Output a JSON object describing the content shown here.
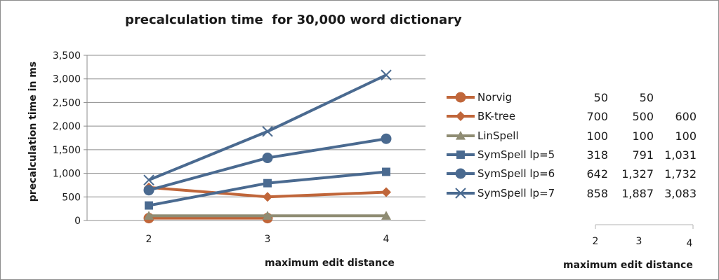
{
  "chart_data": {
    "type": "line",
    "title": "precalculation time  for 30,000 word dictionary",
    "xlabel": "maximum edit distance",
    "ylabel": "precalculation time in ms",
    "x": [
      2,
      3,
      4
    ],
    "x_tick_labels": [
      "2",
      "3",
      "4"
    ],
    "ylim": [
      0,
      3500
    ],
    "y_ticks": [
      0,
      500,
      1000,
      1500,
      2000,
      2500,
      3000,
      3500
    ],
    "y_tick_labels": [
      "0",
      "500",
      "1,000",
      "1,500",
      "2,000",
      "2,500",
      "3,000",
      "3,500"
    ],
    "grid": true,
    "legend_position": "right",
    "series": [
      {
        "name": "Norvig",
        "values": [
          50,
          50,
          null
        ],
        "value_labels": [
          "50",
          "50",
          ""
        ],
        "color": "#c0663a",
        "marker": "circle"
      },
      {
        "name": "BK-tree",
        "values": [
          700,
          500,
          600
        ],
        "value_labels": [
          "700",
          "500",
          "600"
        ],
        "color": "#c0663a",
        "marker": "diamond"
      },
      {
        "name": "LinSpell",
        "values": [
          100,
          100,
          100
        ],
        "value_labels": [
          "100",
          "100",
          "100"
        ],
        "color": "#8f8c73",
        "marker": "triangle"
      },
      {
        "name": "SymSpell lp=5",
        "values": [
          318,
          791,
          1031
        ],
        "value_labels": [
          "318",
          "791",
          "1,031"
        ],
        "color": "#4a6a90",
        "marker": "square"
      },
      {
        "name": "SymSpell lp=6",
        "values": [
          642,
          1327,
          1732
        ],
        "value_labels": [
          "642",
          "1,327",
          "1,732"
        ],
        "color": "#4a6a90",
        "marker": "circle"
      },
      {
        "name": "SymSpell lp=7",
        "values": [
          858,
          1887,
          3083
        ],
        "value_labels": [
          "858",
          "1,887",
          "3,083"
        ],
        "color": "#4a6a90",
        "marker": "x"
      }
    ],
    "data_table": {
      "x_tick_labels": [
        "2",
        "3",
        "4"
      ],
      "xlabel": "maximum edit distance"
    }
  }
}
